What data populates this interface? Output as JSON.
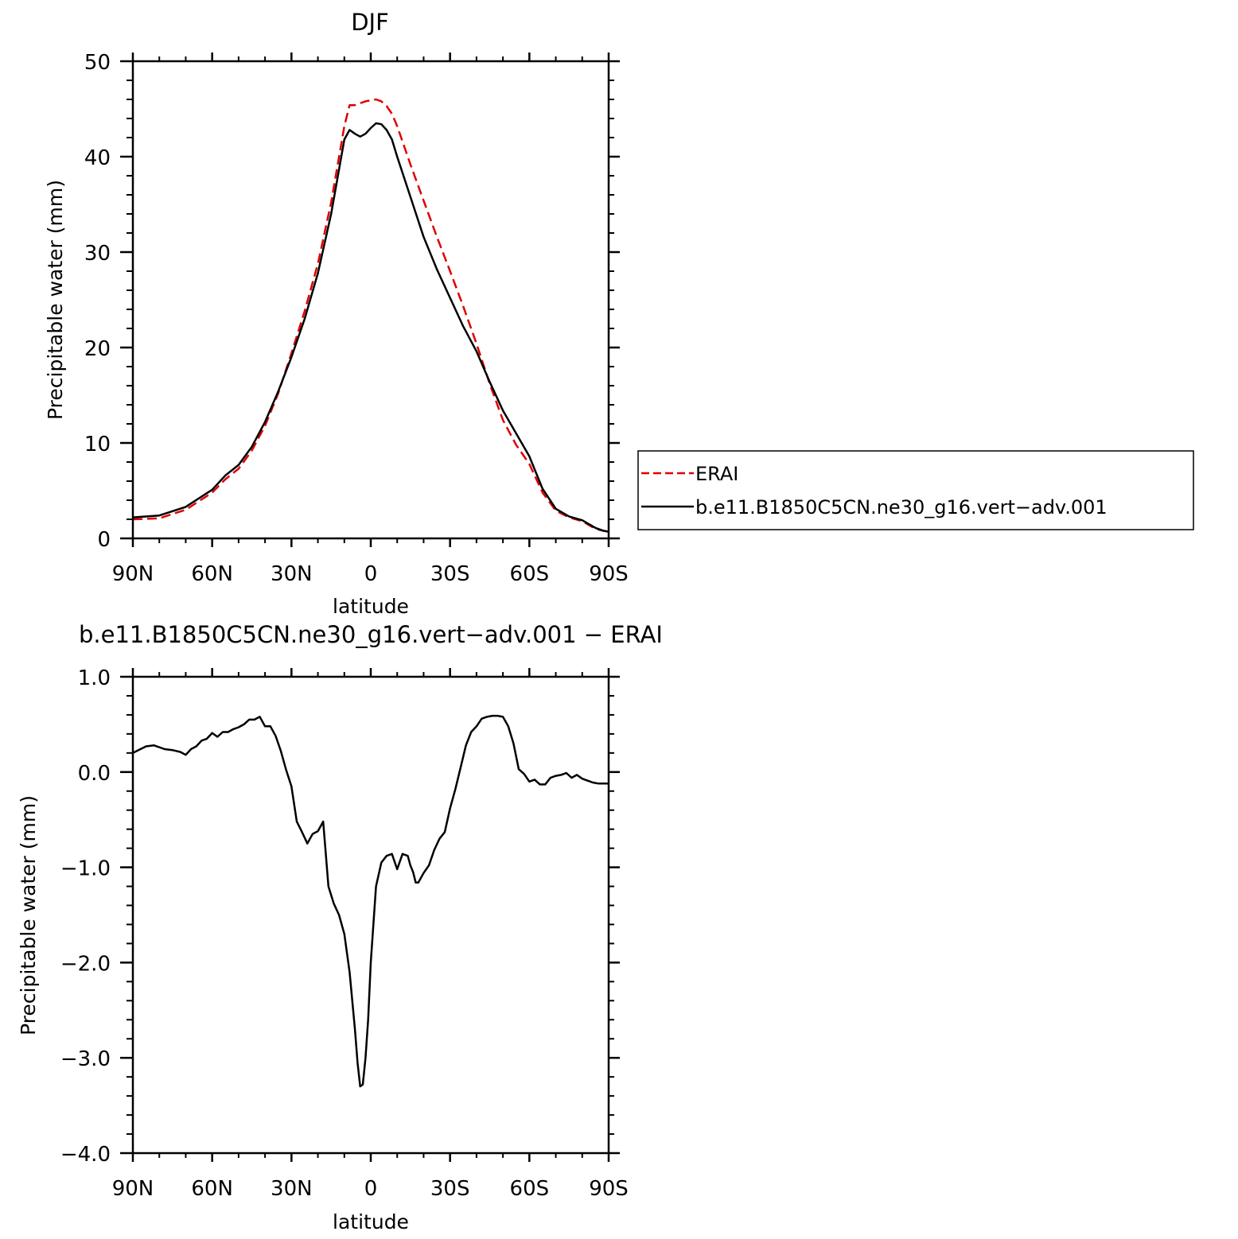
{
  "chart_data": [
    {
      "type": "line",
      "title": "DJF",
      "xlabel": "latitude",
      "ylabel": "Precipitable water (mm)",
      "x_ticks": [
        {
          "value": 90,
          "label": "90N"
        },
        {
          "value": 60,
          "label": "60N"
        },
        {
          "value": 30,
          "label": "30N"
        },
        {
          "value": 0,
          "label": "0"
        },
        {
          "value": -30,
          "label": "30S"
        },
        {
          "value": -60,
          "label": "60S"
        },
        {
          "value": -90,
          "label": "90S"
        }
      ],
      "y_ticks": [
        {
          "value": 0,
          "label": "0"
        },
        {
          "value": 10,
          "label": "10"
        },
        {
          "value": 20,
          "label": "20"
        },
        {
          "value": 30,
          "label": "30"
        },
        {
          "value": 40,
          "label": "40"
        },
        {
          "value": 50,
          "label": "50"
        }
      ],
      "xlim": [
        90,
        -90
      ],
      "ylim": [
        0,
        50
      ],
      "grid": false,
      "legend_placement": "right of plot",
      "series": [
        {
          "name": "ERAI",
          "color": "#e00000",
          "dash": true,
          "x": [
            90,
            80,
            70,
            60,
            55,
            50,
            45,
            40,
            35,
            30,
            25,
            20,
            15,
            10,
            8,
            6,
            4,
            2,
            0,
            -2,
            -4,
            -6,
            -8,
            -10,
            -15,
            -20,
            -25,
            -30,
            -35,
            -40,
            -45,
            -50,
            -55,
            -60,
            -65,
            -70,
            -75,
            -80,
            -85,
            -88,
            -90
          ],
          "y": [
            2.0,
            2.1,
            3.0,
            4.8,
            6.2,
            7.3,
            9.2,
            11.8,
            15.2,
            19.4,
            23.8,
            28.8,
            35.2,
            43.2,
            45.4,
            45.4,
            45.6,
            45.8,
            45.9,
            46.0,
            45.8,
            45.3,
            44.5,
            43.2,
            39.2,
            35.4,
            31.6,
            28.0,
            24.3,
            20.4,
            16.2,
            12.4,
            9.8,
            7.8,
            4.8,
            2.9,
            2.2,
            1.8,
            1.0,
            0.8,
            0.7
          ]
        },
        {
          "name": "b.e11.B1850C5CN.ne30_g16.vert−adv.001",
          "color": "#000000",
          "dash": false,
          "x": [
            90,
            80,
            70,
            60,
            55,
            50,
            45,
            40,
            35,
            30,
            25,
            20,
            15,
            10,
            8,
            6,
            4,
            2,
            0,
            -2,
            -4,
            -6,
            -8,
            -10,
            -15,
            -20,
            -25,
            -30,
            -35,
            -40,
            -45,
            -50,
            -55,
            -60,
            -65,
            -70,
            -75,
            -80,
            -85,
            -88,
            -90
          ],
          "y": [
            2.2,
            2.4,
            3.3,
            5.1,
            6.6,
            7.7,
            9.6,
            12.2,
            15.4,
            19.0,
            23.0,
            27.8,
            34.0,
            41.8,
            42.8,
            42.4,
            42.1,
            42.4,
            43.0,
            43.5,
            43.4,
            42.8,
            41.8,
            40.0,
            35.8,
            31.6,
            28.2,
            25.2,
            22.2,
            19.6,
            16.4,
            13.4,
            11.0,
            8.6,
            5.2,
            3.1,
            2.3,
            1.9,
            1.1,
            0.8,
            0.7
          ]
        }
      ]
    },
    {
      "type": "line",
      "title": "b.e11.B1850C5CN.ne30_g16.vert−adv.001  −  ERAI",
      "xlabel": "latitude",
      "ylabel": "Precipitable water (mm)",
      "x_ticks": [
        {
          "value": 90,
          "label": "90N"
        },
        {
          "value": 60,
          "label": "60N"
        },
        {
          "value": 30,
          "label": "30N"
        },
        {
          "value": 0,
          "label": "0"
        },
        {
          "value": -30,
          "label": "30S"
        },
        {
          "value": -60,
          "label": "60S"
        },
        {
          "value": -90,
          "label": "90S"
        }
      ],
      "y_ticks": [
        {
          "value": 1.0,
          "label": "1.0"
        },
        {
          "value": 0.0,
          "label": "0.0"
        },
        {
          "value": -1.0,
          "label": "−1.0"
        },
        {
          "value": -2.0,
          "label": "−2.0"
        },
        {
          "value": -3.0,
          "label": "−3.0"
        },
        {
          "value": -4.0,
          "label": "−4.0"
        }
      ],
      "xlim": [
        90,
        -90
      ],
      "ylim": [
        -4.0,
        1.0
      ],
      "grid": false,
      "series": [
        {
          "color": "#000000",
          "dash": false,
          "x": [
            90,
            85,
            82,
            78,
            75,
            72,
            70,
            68,
            66,
            64,
            62,
            60,
            58,
            56,
            54,
            52,
            50,
            48,
            46,
            44,
            42,
            40,
            38,
            36,
            34,
            32,
            30,
            28,
            26,
            24,
            22,
            20,
            18,
            16,
            14,
            12,
            10,
            8,
            6,
            5,
            4,
            3,
            2,
            1,
            0,
            -2,
            -4,
            -6,
            -8,
            -10,
            -12,
            -14,
            -15,
            -16,
            -17,
            -18,
            -20,
            -22,
            -24,
            -26,
            -28,
            -30,
            -32,
            -34,
            -36,
            -38,
            -40,
            -42,
            -44,
            -46,
            -48,
            -50,
            -52,
            -54,
            -56,
            -58,
            -60,
            -62,
            -64,
            -66,
            -68,
            -70,
            -72,
            -74,
            -76,
            -78,
            -80,
            -82,
            -84,
            -86,
            -88,
            -90
          ],
          "y": [
            0.2,
            0.27,
            0.28,
            0.24,
            0.23,
            0.21,
            0.18,
            0.24,
            0.27,
            0.33,
            0.35,
            0.41,
            0.37,
            0.42,
            0.42,
            0.45,
            0.47,
            0.5,
            0.55,
            0.55,
            0.58,
            0.48,
            0.48,
            0.38,
            0.22,
            0.02,
            -0.15,
            -0.52,
            -0.63,
            -0.75,
            -0.65,
            -0.62,
            -0.52,
            -1.2,
            -1.38,
            -1.5,
            -1.7,
            -2.1,
            -2.7,
            -3.05,
            -3.3,
            -3.28,
            -3.0,
            -2.6,
            -2.0,
            -1.2,
            -0.95,
            -0.88,
            -0.86,
            -1.02,
            -0.86,
            -0.88,
            -0.98,
            -1.05,
            -1.16,
            -1.16,
            -1.06,
            -0.98,
            -0.82,
            -0.7,
            -0.63,
            -0.38,
            -0.18,
            0.05,
            0.28,
            0.42,
            0.48,
            0.56,
            0.58,
            0.59,
            0.59,
            0.58,
            0.48,
            0.3,
            0.03,
            -0.02,
            -0.1,
            -0.08,
            -0.13,
            -0.13,
            -0.06,
            -0.04,
            -0.03,
            -0.01,
            -0.06,
            -0.03,
            -0.07,
            -0.09,
            -0.11,
            -0.12,
            -0.12,
            -0.12
          ]
        }
      ]
    }
  ]
}
